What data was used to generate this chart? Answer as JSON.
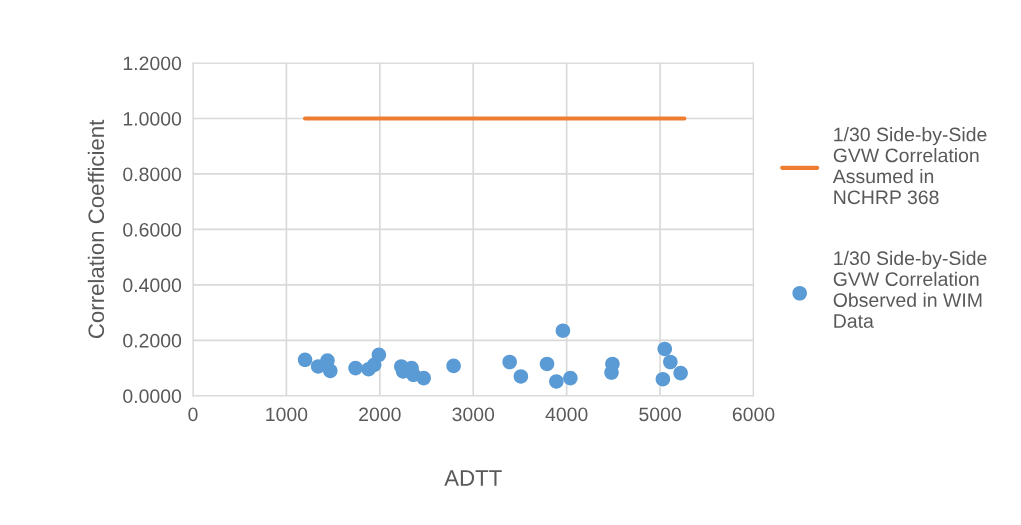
{
  "chart_data": {
    "type": "scatter",
    "xlabel": "ADTT",
    "ylabel": "Correlation Coefficient",
    "xlim": [
      0,
      6000
    ],
    "xticks": [
      0,
      1000,
      2000,
      3000,
      4000,
      5000,
      6000
    ],
    "ylim": [
      0,
      1.2
    ],
    "yticks": [
      {
        "value": 0,
        "label": "0.0000"
      },
      {
        "value": 0.2,
        "label": "0.2000"
      },
      {
        "value": 0.4,
        "label": "0.4000"
      },
      {
        "value": 0.6,
        "label": "0.6000"
      },
      {
        "value": 0.8,
        "label": "0.8000"
      },
      {
        "value": 1.0,
        "label": "1.0000"
      },
      {
        "value": 1.2,
        "label": "1.2000"
      }
    ],
    "grid": true,
    "legend": "right",
    "series": [
      {
        "name": "1/30 Side-by-Side\nGVW Correlation\nAssumed in\nNCHRP 368",
        "type": "line",
        "marker": "none",
        "color": "#ed7d31",
        "x": [
          1200,
          5260
        ],
        "values": [
          1.0,
          1.0
        ]
      },
      {
        "name": "1/30 Side-by-Side\nGVW Correlation\nObserved in WIM\nData",
        "marker": "circle",
        "color": "#5b9bd5",
        "x": [
          1200,
          1340,
          1440,
          1470,
          1740,
          1880,
          1940,
          1990,
          2230,
          2250,
          2340,
          2360,
          2470,
          2790,
          3390,
          3510,
          3960,
          3790,
          3890,
          4040,
          4490,
          4480,
          5050,
          5110,
          5220,
          5030
        ],
        "values": [
          0.13,
          0.106,
          0.127,
          0.09,
          0.1,
          0.096,
          0.112,
          0.148,
          0.106,
          0.088,
          0.1,
          0.076,
          0.064,
          0.108,
          0.122,
          0.07,
          0.235,
          0.115,
          0.052,
          0.064,
          0.115,
          0.084,
          0.169,
          0.122,
          0.082,
          0.06
        ]
      }
    ]
  }
}
